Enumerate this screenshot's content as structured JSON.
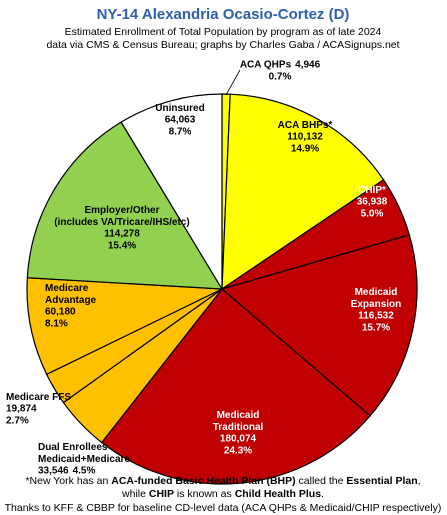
{
  "chart_data": {
    "type": "pie",
    "title": "NY-14 Alexandria Ocasio-Cortez (D)",
    "subtitle": [
      "Estimated Enrollment of Total Population by program as of late 2024",
      "data via CMS & Census Bureau; graphs by Charles Gaba / ACASignups.net"
    ],
    "categories": [
      "ACA QHPs",
      "ACA BHPs*",
      "CHIP*",
      "Medicaid\nExpansion",
      "Medicaid\nTraditional",
      "Dual Enrollees\nMedicaid+Medicare",
      "Medicare FFS",
      "Medicare\nAdvantage",
      "Employer/Other\n(includes VA/Tricare/IHS/etc)",
      "Uninsured"
    ],
    "values": [
      4946,
      110132,
      36938,
      116532,
      180074,
      33546,
      19874,
      60180,
      114278,
      64063
    ],
    "value_labels": [
      "4,946",
      "110,132",
      "36,938",
      "116,532",
      "180,074",
      "33,546",
      "19,874",
      "60,180",
      "114,278",
      "64,063"
    ],
    "percent_labels": [
      "0.7%",
      "14.9%",
      "5.0%",
      "15.7%",
      "24.3%",
      "4.5%",
      "2.7%",
      "8.1%",
      "15.4%",
      "8.7%"
    ],
    "colors": [
      "#ffff00",
      "#ffff00",
      "#c00000",
      "#c00000",
      "#c00000",
      "#ffc000",
      "#ffc000",
      "#ffc000",
      "#92d050",
      "#ffffff"
    ],
    "footnote": [
      [
        "*New York has an ",
        "ACA-funded Basic Health Plan (BHP)",
        " called the ",
        "Essential Plan",
        ","
      ],
      [
        "while ",
        "CHIP",
        " is known as ",
        "Child Health Plus",
        "."
      ]
    ],
    "credit": "Thanks to KFF & CBBP for baseline CD-level data (ACA QHPs & Medicaid/CHIP respectively)"
  }
}
